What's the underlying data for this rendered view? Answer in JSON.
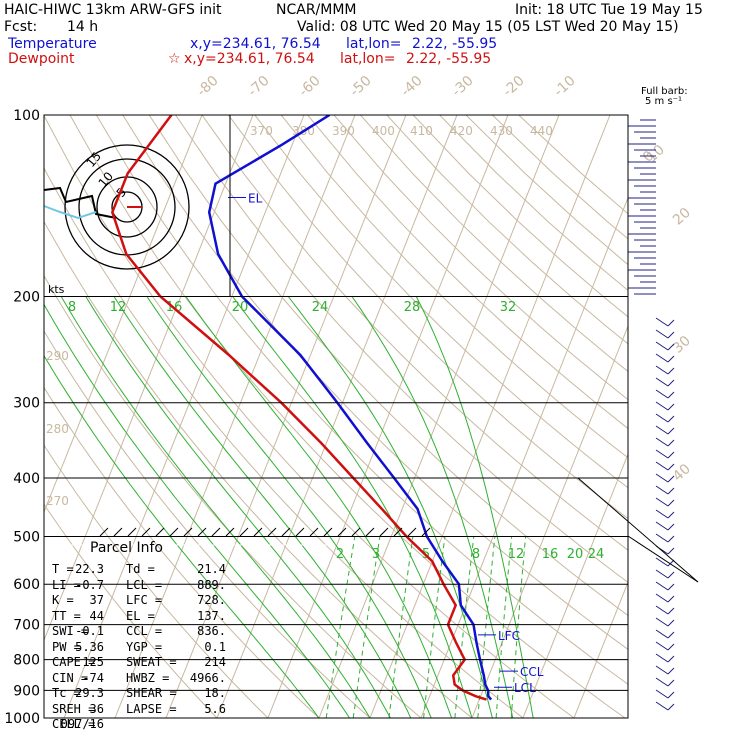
{
  "header": {
    "model": "HAIC-HIWC 13km ARW-GFS init",
    "agency": "NCAR/MMM",
    "init": "Init: 18 UTC Tue 19 May 15",
    "fcst_label": "Fcst:",
    "fcst_value": "14 h",
    "valid": "Valid: 08 UTC Wed 20 May 15 (05 LST Wed 20 May 15)",
    "temp_label": "Temperature",
    "dew_label": "Dewpoint",
    "xy_temp": "x,y=234.61, 76.54",
    "xy_dew": "x,y=234.61, 76.54",
    "latlon_label": "lat,lon=",
    "latlon_temp": "2.22, -55.95",
    "latlon_dew": "2.22, -55.95",
    "star_icon": "star"
  },
  "barb_key": {
    "line1": "Full barb:",
    "line2": "5 m s⁻¹"
  },
  "hodograph": {
    "rings": [
      "5",
      "10",
      "15"
    ],
    "units": "kts"
  },
  "parcel_info": {
    "title": "Parcel Info",
    "rows": [
      [
        "T",
        "22.3",
        "Td",
        "21.4"
      ],
      [
        "LI",
        "-0.7",
        "LCL",
        "889."
      ],
      [
        "K",
        "37",
        "LFC",
        "728."
      ],
      [
        "TT",
        "44",
        "EL",
        "137."
      ],
      [
        "SWI",
        "-0.1",
        "CCL",
        "836."
      ],
      [
        "PW",
        "5.36",
        "YGP",
        "0.1"
      ],
      [
        "CAPE",
        "125",
        "SWEAT",
        "214"
      ],
      [
        "CIN",
        "-74",
        "HWBZ",
        "4966."
      ],
      [
        "Tc",
        "29.3",
        "SHEAR",
        "18."
      ],
      [
        "SREH",
        "36",
        "LAPSE",
        "5.6"
      ],
      [
        "CELL",
        "097/16",
        "",
        ""
      ]
    ]
  },
  "chart_data": {
    "type": "skew-t",
    "pressure_axis": {
      "ticks": [
        "100",
        "200",
        "300",
        "400",
        "500",
        "600",
        "700",
        "800",
        "900",
        "1000"
      ],
      "values": [
        100,
        200,
        300,
        400,
        500,
        600,
        700,
        800,
        900,
        1000
      ],
      "scale": "log",
      "unit": "hPa"
    },
    "isotherm_labels": [
      "-80",
      "-70",
      "-60",
      "-50",
      "-40",
      "-30",
      "-20",
      "-10",
      "0",
      "10",
      "20",
      "30",
      "40"
    ],
    "isotherm_values": [
      -80,
      -70,
      -60,
      -50,
      -40,
      -30,
      -20,
      -10,
      0,
      10,
      20,
      30,
      40
    ],
    "theta_labels": [
      "370",
      "380",
      "390",
      "400",
      "410",
      "420",
      "430",
      "440",
      "290",
      "280",
      "270"
    ],
    "mixing_ratio_labels_lower": [
      "2",
      "3",
      "5",
      "8",
      "12",
      "16",
      "20",
      "24"
    ],
    "mixing_ratio_labels_upper": [
      "8",
      "12",
      "16",
      "20",
      "24",
      "28",
      "32"
    ],
    "levels": [
      {
        "name": "EL",
        "label": "EL",
        "pressure": 137
      },
      {
        "name": "LFC",
        "label": "LFC",
        "pressure": 728
      },
      {
        "name": "CCL",
        "label": "CCL",
        "pressure": 836
      },
      {
        "name": "LCL",
        "label": "LCL",
        "pressure": 889
      }
    ],
    "series": [
      {
        "name": "Temperature",
        "color": "#1010d0",
        "points": [
          [
            100,
            -55
          ],
          [
            112,
            -62
          ],
          [
            130,
            -72
          ],
          [
            145,
            -71
          ],
          [
            170,
            -66
          ],
          [
            200,
            -58
          ],
          [
            250,
            -42
          ],
          [
            300,
            -31
          ],
          [
            350,
            -22
          ],
          [
            400,
            -14
          ],
          [
            450,
            -7
          ],
          [
            500,
            -3
          ],
          [
            550,
            2
          ],
          [
            600,
            7
          ],
          [
            650,
            9
          ],
          [
            700,
            13
          ],
          [
            750,
            15
          ],
          [
            800,
            17
          ],
          [
            850,
            19
          ],
          [
            880,
            20
          ],
          [
            900,
            21
          ],
          [
            920,
            21.5
          ],
          [
            932,
            22.3
          ]
        ]
      },
      {
        "name": "Dewpoint",
        "color": "#d01010",
        "points": [
          [
            100,
            -86
          ],
          [
            125,
            -90
          ],
          [
            145,
            -90
          ],
          [
            170,
            -84
          ],
          [
            200,
            -74
          ],
          [
            250,
            -56
          ],
          [
            300,
            -42
          ],
          [
            350,
            -31
          ],
          [
            400,
            -22
          ],
          [
            450,
            -14
          ],
          [
            500,
            -7
          ],
          [
            550,
            0
          ],
          [
            600,
            4
          ],
          [
            650,
            8
          ],
          [
            700,
            8
          ],
          [
            750,
            11
          ],
          [
            800,
            14
          ],
          [
            850,
            13
          ],
          [
            880,
            14
          ],
          [
            900,
            16
          ],
          [
            920,
            19
          ],
          [
            932,
            21.4
          ]
        ]
      }
    ]
  },
  "colors": {
    "temperature": "#1010d0",
    "dewpoint": "#d01010",
    "isotherm": "#c8b8a0",
    "mixing_ratio": "#30b030",
    "adiabat": "#30b030",
    "barb": "#202080"
  }
}
